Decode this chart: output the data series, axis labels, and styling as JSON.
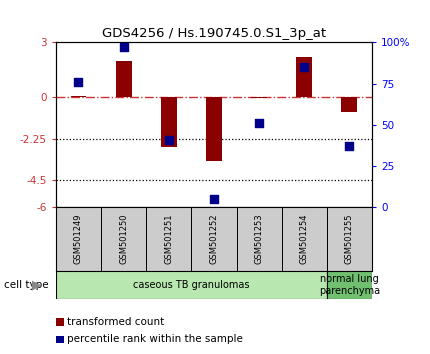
{
  "title": "GDS4256 / Hs.190745.0.S1_3p_at",
  "samples": [
    "GSM501249",
    "GSM501250",
    "GSM501251",
    "GSM501252",
    "GSM501253",
    "GSM501254",
    "GSM501255"
  ],
  "transformed_count": [
    0.05,
    2.0,
    -2.7,
    -3.5,
    -0.05,
    2.2,
    -0.8
  ],
  "percentile_rank": [
    76,
    97,
    41,
    5,
    51,
    85,
    37
  ],
  "ylim_left": [
    -6,
    3
  ],
  "ylim_right": [
    0,
    100
  ],
  "yticks_left": [
    -6,
    -4.5,
    -2.25,
    0,
    3
  ],
  "ytick_labels_left": [
    "-6",
    "-4.5",
    "-2.25",
    "0",
    "3"
  ],
  "yticks_right": [
    0,
    25,
    50,
    75,
    100
  ],
  "ytick_labels_right": [
    "0",
    "25",
    "50",
    "75",
    "100%"
  ],
  "dotted_lines": [
    -2.25,
    -4.5
  ],
  "bar_color": "#8B0000",
  "scatter_color": "#00008B",
  "bar_width": 0.35,
  "scatter_size": 28,
  "cell_type_groups": [
    {
      "label": "caseous TB granulomas",
      "indices": [
        0,
        1,
        2,
        3,
        4,
        5
      ],
      "color": "#B8E8B0"
    },
    {
      "label": "normal lung\nparenchyma",
      "indices": [
        6
      ],
      "color": "#70C070"
    }
  ],
  "legend_bar_label": "transformed count",
  "legend_scatter_label": "percentile rank within the sample",
  "cell_type_label": "cell type",
  "dashdot_color": "#CC3333",
  "sample_box_color": "#CCCCCC"
}
